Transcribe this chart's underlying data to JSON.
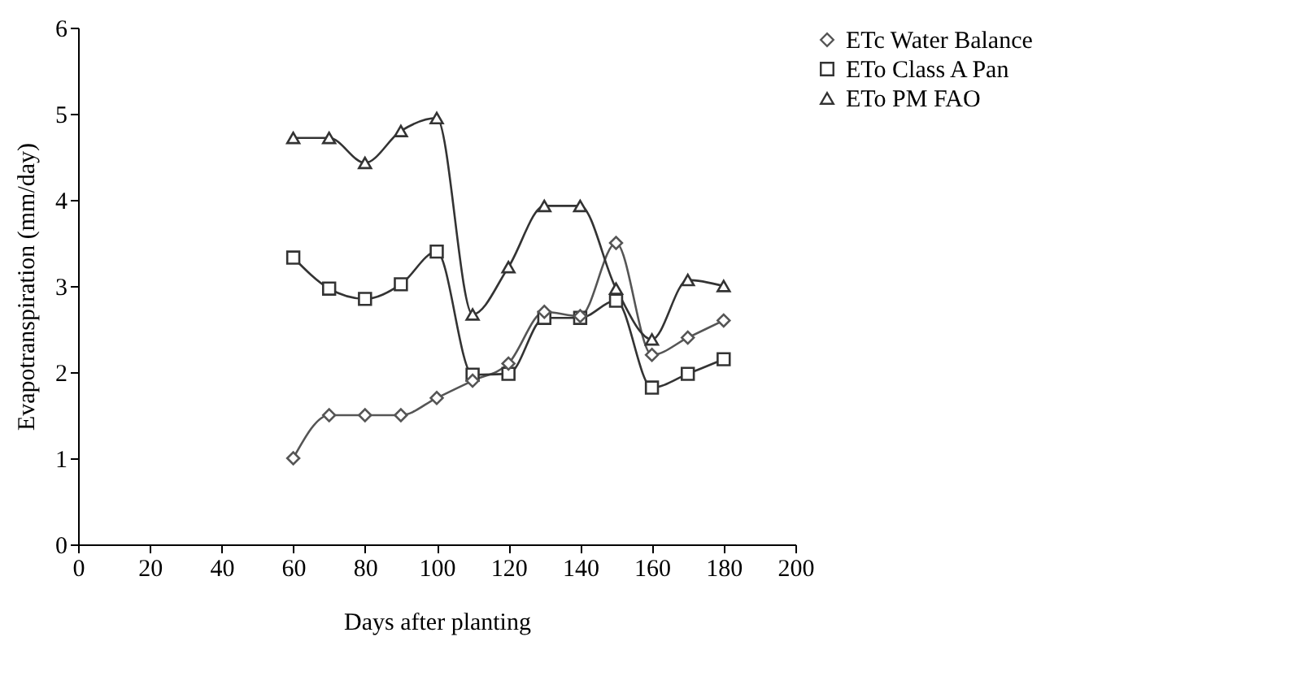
{
  "chart_data": {
    "type": "line",
    "xlabel": "Days after planting",
    "ylabel": "Evapotranspiration (mm/day)",
    "x": [
      60,
      70,
      80,
      90,
      100,
      110,
      120,
      130,
      140,
      150,
      160,
      170,
      180
    ],
    "series": [
      {
        "name": "ETc Water Balance",
        "color": "#555555",
        "marker": "diamond",
        "values": [
          1.0,
          1.5,
          1.5,
          1.5,
          1.7,
          1.9,
          2.1,
          2.7,
          2.65,
          3.5,
          2.2,
          2.4,
          2.6
        ]
      },
      {
        "name": "ETo  Class A Pan",
        "color": "#333333",
        "marker": "square",
        "values": [
          3.33,
          2.97,
          2.85,
          3.02,
          3.4,
          1.97,
          1.98,
          2.63,
          2.63,
          2.83,
          1.82,
          1.98,
          2.15
        ]
      },
      {
        "name": "ETo PM FAO",
        "color": "#333333",
        "marker": "triangle",
        "values": [
          4.72,
          4.72,
          4.43,
          4.8,
          4.95,
          2.67,
          3.22,
          3.93,
          3.93,
          2.97,
          2.38,
          3.07,
          3.0
        ]
      }
    ],
    "xlim": [
      0,
      200
    ],
    "xticks": [
      0,
      20,
      40,
      60,
      80,
      100,
      120,
      140,
      160,
      180,
      200
    ],
    "ylim": [
      0,
      6
    ],
    "yticks": [
      0,
      1,
      2,
      3,
      4,
      5,
      6
    ],
    "grid": false,
    "legend": "right",
    "line_style": "solid"
  }
}
